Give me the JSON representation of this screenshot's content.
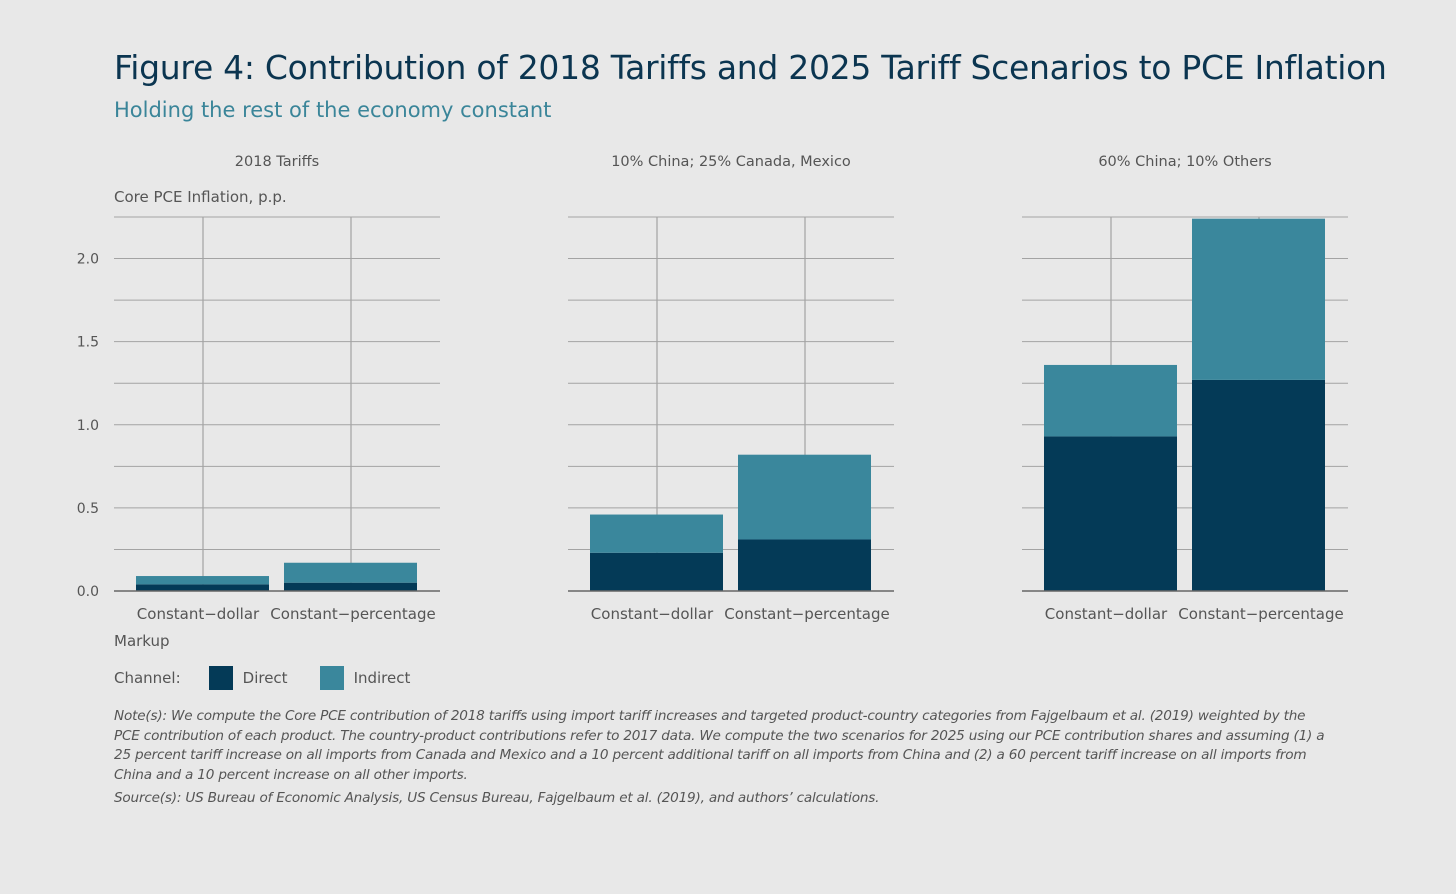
{
  "header": {
    "title": "Figure 4: Contribution of 2018 Tariffs and 2025 Tariff Scenarios to PCE Inflation",
    "subtitle": "Holding the rest of the economy constant"
  },
  "colors": {
    "direct": "#043a57",
    "indirect": "#3a879c",
    "grid": "#a3a3a3",
    "axis": "#666666"
  },
  "footer": {
    "xaxis_title": "Markup",
    "legend_title": "Channel:",
    "note": "Note(s): We compute the Core PCE contribution of 2018 tariffs using import tariff increases and targeted product-country categories from Fajgelbaum et al. (2019) weighted by the PCE contribution of each product. The country-product contributions refer to 2017 data. We compute the two scenarios for 2025 using our PCE contribution shares and assuming (1) a 25 percent tariff increase on all imports from Canada and Mexico and a 10 percent additional tariff on all imports from China and (2) a 60 percent tariff increase on all imports from China and a 10 percent increase on all other imports.",
    "source": "Source(s): US Bureau of Economic Analysis, US Census Bureau, Fajgelbaum et al. (2019), and authors’ calculations."
  },
  "chart_data": {
    "type": "bar",
    "stacked": true,
    "ylabel": "Core PCE Inflation, p.p.",
    "xlabel": "Markup",
    "ylim": [
      0,
      2.25
    ],
    "yticks": [
      0.0,
      0.5,
      1.0,
      1.5,
      2.0
    ],
    "ytick_labels": [
      "0.0",
      "0.5",
      "1.0",
      "1.5",
      "2.0"
    ],
    "legend_title": "Channel:",
    "legend_position": "bottom-left",
    "categories": [
      "Constant−dollar",
      "Constant−percentage"
    ],
    "panels": [
      {
        "title": "2018 Tariffs",
        "series": [
          {
            "name": "Direct",
            "values": [
              0.04,
              0.05
            ]
          },
          {
            "name": "Indirect",
            "values": [
              0.05,
              0.12
            ]
          }
        ]
      },
      {
        "title": "10% China; 25% Canada, Mexico",
        "series": [
          {
            "name": "Direct",
            "values": [
              0.23,
              0.31
            ]
          },
          {
            "name": "Indirect",
            "values": [
              0.23,
              0.51
            ]
          }
        ]
      },
      {
        "title": "60% China; 10% Others",
        "series": [
          {
            "name": "Direct",
            "values": [
              0.93,
              1.27
            ]
          },
          {
            "name": "Indirect",
            "values": [
              0.43,
              0.97
            ]
          }
        ]
      }
    ]
  }
}
